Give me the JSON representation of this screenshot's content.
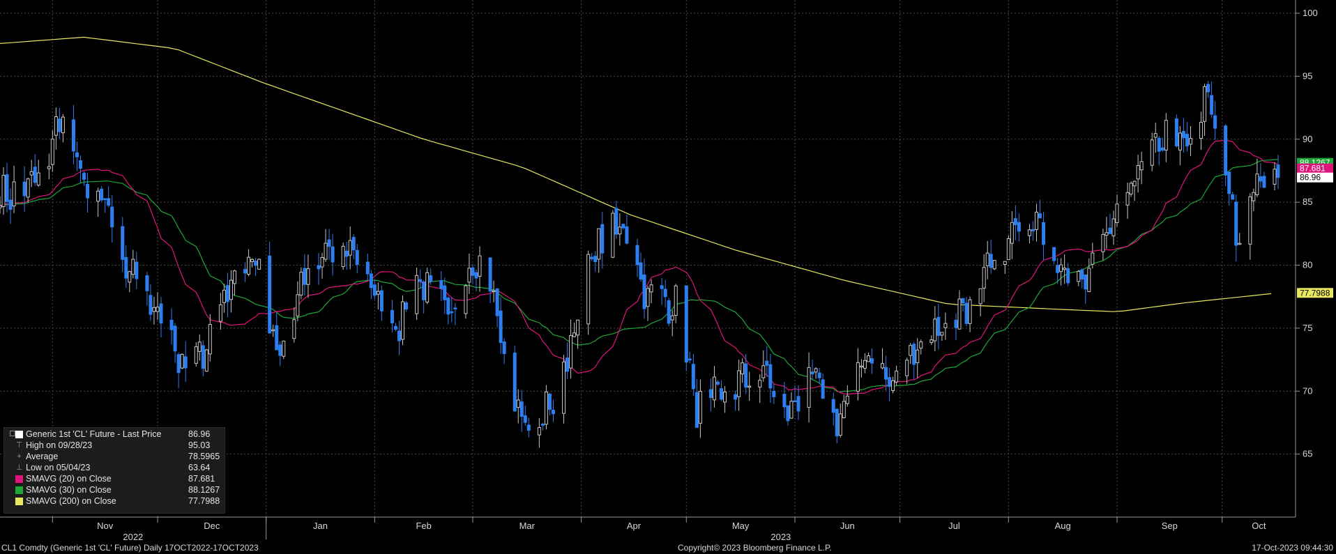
{
  "chart_data": {
    "type": "candlestick",
    "security": "Generic 1st 'CL' Future",
    "frequency": "Daily",
    "y_axis": {
      "ticks": [
        65,
        70,
        75,
        80,
        85,
        90,
        95,
        100
      ],
      "range": [
        60,
        100.5
      ],
      "side": "right"
    },
    "x_axis": {
      "month_labels": [
        "Nov",
        "Dec",
        "Jan",
        "Feb",
        "Mar",
        "Apr",
        "May",
        "Jun",
        "Jul",
        "Aug",
        "Sep",
        "Oct"
      ],
      "year_labels": [
        "2022",
        "2023"
      ],
      "range": [
        "2022-10-17",
        "2023-10-17"
      ]
    },
    "grid": true,
    "legend_position": "bottom-left",
    "colors": {
      "up_candle": "#c8c8c8",
      "down_candle": "#2d7ff0",
      "sma20": "#e0157c",
      "sma30": "#1fa83a",
      "sma200": "#e8e860",
      "last_price_tag": "#ffffff"
    },
    "close_anchors": [
      [
        "2022-10-17",
        85.5
      ],
      [
        "2022-10-24",
        86.0
      ],
      [
        "2022-10-31",
        88.4
      ],
      [
        "2022-11-04",
        92.6
      ],
      [
        "2022-11-10",
        86.5
      ],
      [
        "2022-11-16",
        85.2
      ],
      [
        "2022-11-21",
        80.0
      ],
      [
        "2022-11-28",
        77.5
      ],
      [
        "2022-12-05",
        74.3
      ],
      [
        "2022-12-09",
        71.0
      ],
      [
        "2022-12-16",
        74.3
      ],
      [
        "2022-12-23",
        79.6
      ],
      [
        "2022-12-30",
        80.3
      ],
      [
        "2023-01-04",
        73.0
      ],
      [
        "2023-01-13",
        79.9
      ],
      [
        "2023-01-23",
        81.6
      ],
      [
        "2023-01-31",
        78.9
      ],
      [
        "2023-02-06",
        74.1
      ],
      [
        "2023-02-14",
        79.1
      ],
      [
        "2023-02-24",
        76.3
      ],
      [
        "2023-03-03",
        79.7
      ],
      [
        "2023-03-07",
        77.6
      ],
      [
        "2023-03-15",
        67.6
      ],
      [
        "2023-03-20",
        67.6
      ],
      [
        "2023-03-24",
        69.3
      ],
      [
        "2023-03-31",
        75.7
      ],
      [
        "2023-04-03",
        80.4
      ],
      [
        "2023-04-12",
        83.3
      ],
      [
        "2023-04-20",
        77.4
      ],
      [
        "2023-04-28",
        76.8
      ],
      [
        "2023-05-04",
        68.6
      ],
      [
        "2023-05-12",
        70.0
      ],
      [
        "2023-05-22",
        71.9
      ],
      [
        "2023-05-31",
        68.1
      ],
      [
        "2023-06-05",
        72.2
      ],
      [
        "2023-06-12",
        67.1
      ],
      [
        "2023-06-21",
        72.5
      ],
      [
        "2023-06-30",
        70.6
      ],
      [
        "2023-07-07",
        73.9
      ],
      [
        "2023-07-14",
        75.4
      ],
      [
        "2023-07-21",
        77.1
      ],
      [
        "2023-07-31",
        81.8
      ],
      [
        "2023-08-09",
        84.4
      ],
      [
        "2023-08-16",
        79.4
      ],
      [
        "2023-08-24",
        79.1
      ],
      [
        "2023-08-31",
        83.6
      ],
      [
        "2023-09-07",
        87.5
      ],
      [
        "2023-09-15",
        90.8
      ],
      [
        "2023-09-22",
        90.0
      ],
      [
        "2023-09-27",
        93.7
      ],
      [
        "2023-10-02",
        88.8
      ],
      [
        "2023-10-05",
        82.3
      ],
      [
        "2023-10-10",
        86.0
      ],
      [
        "2023-10-17",
        86.96
      ]
    ],
    "sma200_anchors": [
      [
        "2022-10-17",
        97.6
      ],
      [
        "2022-11-10",
        98.1
      ],
      [
        "2022-12-06",
        97.2
      ],
      [
        "2022-12-31",
        94.5
      ],
      [
        "2023-02-15",
        90.0
      ],
      [
        "2023-03-15",
        87.8
      ],
      [
        "2023-04-15",
        84.0
      ],
      [
        "2023-05-15",
        81.2
      ],
      [
        "2023-06-15",
        78.8
      ],
      [
        "2023-07-15",
        76.9
      ],
      [
        "2023-08-15",
        76.5
      ],
      [
        "2023-09-01",
        76.3
      ],
      [
        "2023-09-20",
        77.0
      ],
      [
        "2023-10-17",
        77.7988
      ]
    ]
  },
  "price_tags": {
    "last_price": "86.96",
    "sma20": "87.681",
    "sma30": "88.1267",
    "sma200": "77.7988"
  },
  "legend": {
    "rows": [
      {
        "name": "Generic 1st 'CL' Future - Last Price",
        "value": "86.96",
        "swatch": "#ffffff",
        "glyph": ""
      },
      {
        "name": "High on 09/28/23",
        "value": "95.03",
        "swatch": "",
        "glyph": "⊤"
      },
      {
        "name": "Average",
        "value": "78.5965",
        "swatch": "",
        "glyph": "+"
      },
      {
        "name": "Low on 05/04/23",
        "value": "63.64",
        "swatch": "",
        "glyph": "⊥"
      },
      {
        "name": "SMAVG (20)  on Close",
        "value": "87.681",
        "swatch": "#e0157c",
        "glyph": ""
      },
      {
        "name": "SMAVG (30)  on Close",
        "value": "88.1267",
        "swatch": "#1fa83a",
        "glyph": ""
      },
      {
        "name": "SMAVG (200)  on Close",
        "value": "77.7988",
        "swatch": "#e8e860",
        "glyph": ""
      }
    ]
  },
  "footer": {
    "left": "CL1 Comdty (Generic 1st 'CL' Future)  Daily 17OCT2022-17OCT2023",
    "center": "Copyright© 2023 Bloomberg Finance L.P.",
    "right": "17-Oct-2023 09:44:30"
  }
}
